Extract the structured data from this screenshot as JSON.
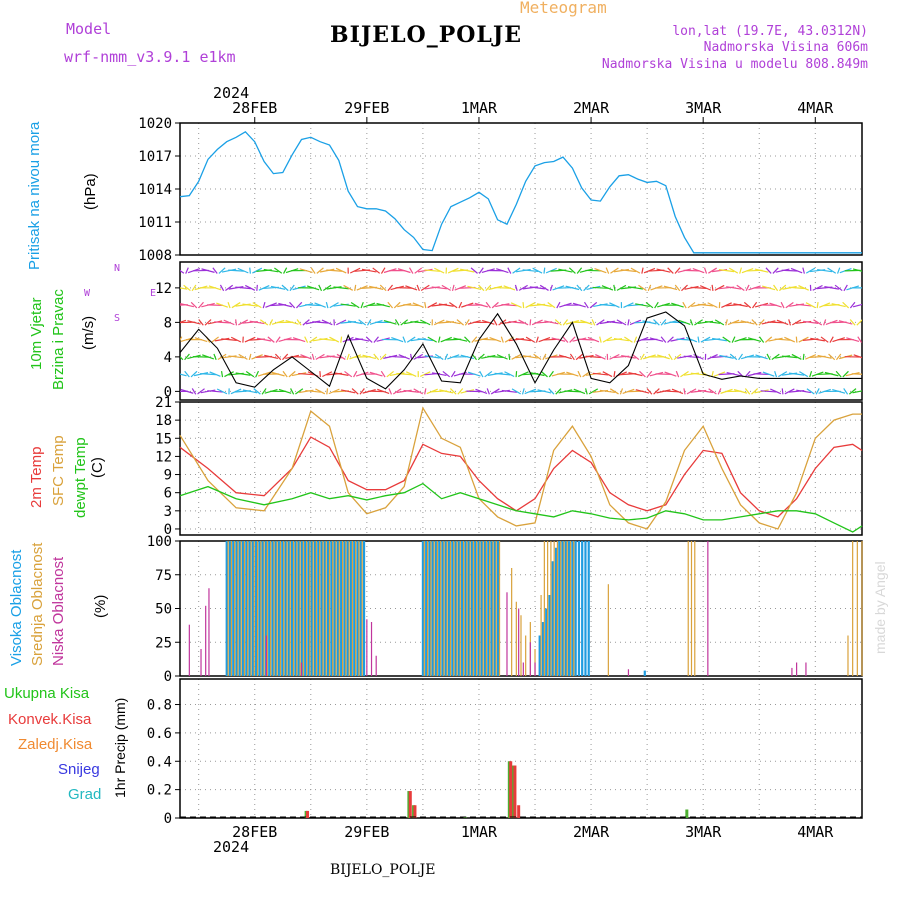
{
  "header": {
    "meteogram": "Meteogram",
    "title": "BIJELO_POLJE",
    "model_label": "Model",
    "model_name": "wrf-nmm_v3.9.1 e1km",
    "lonlat": "lon,lat (19.7E, 43.0312N)",
    "elevation": "Nadmorska Visina 606m",
    "model_elevation": "Nadmorska Visina u modelu 808.849m"
  },
  "footer": {
    "station": "BIJELO_POLJE",
    "credit": "made by Angel"
  },
  "colors": {
    "pressure": "#1aa0e6",
    "t2m": "#e83b3b",
    "tsfc": "#d9a23c",
    "dew": "#22c41a",
    "cloud_high": "#1e9be0",
    "cloud_mid": "#d9a23c",
    "cloud_low": "#c0359c",
    "precip_total": "#4caf30",
    "precip_conv": "#e83b3b",
    "precip_frz": "#f08a30",
    "snow": "#3838e0",
    "hail": "#22b8c0"
  },
  "chart_data": [
    {
      "type": "line",
      "title": "",
      "ylabel": "Pritisak na nivou mora",
      "unit": "(hPa)",
      "top_axis": {
        "year": "2024",
        "labels": [
          "28FEB",
          "29FEB",
          "1MAR",
          "2MAR",
          "3MAR",
          "4MAR"
        ]
      },
      "yticks": [
        1008,
        1011,
        1014,
        1017,
        1020
      ],
      "ylim": [
        1008,
        1020
      ],
      "xlim": [
        0,
        146
      ],
      "grid": true,
      "series": [
        {
          "name": "Pritisak",
          "x": [
            0,
            2,
            4,
            6,
            8,
            10,
            12,
            14,
            16,
            18,
            20,
            22,
            24,
            26,
            28,
            30,
            32,
            34,
            36,
            38,
            40,
            42,
            44,
            46,
            48,
            50,
            52,
            54,
            56,
            58,
            60,
            62,
            64,
            66,
            68,
            70,
            72,
            74,
            76,
            78,
            80,
            82,
            84,
            86,
            88,
            90,
            92,
            94,
            96,
            98,
            100,
            102,
            104,
            106,
            108,
            110,
            112,
            114,
            116,
            118,
            120,
            122,
            124,
            126,
            128,
            130,
            132,
            134,
            136,
            138,
            140,
            142,
            144,
            146
          ],
          "values": [
            1013.3,
            1013.4,
            1014.7,
            1016.7,
            1017.6,
            1018.3,
            1018.7,
            1019.2,
            1018.3,
            1016.5,
            1015.4,
            1015.5,
            1017.1,
            1018.5,
            1018.7,
            1018.3,
            1018.0,
            1016.6,
            1013.8,
            1012.4,
            1012.2,
            1012.2,
            1012.0,
            1011.3,
            1010.3,
            1009.6,
            1008.5,
            1008.4,
            1010.8,
            1012.4,
            1012.8,
            1013.2,
            1013.7,
            1013.1,
            1011.2,
            1010.8,
            1012.6,
            1014.7,
            1016.1,
            1016.4,
            1016.5,
            1016.9,
            1015.9,
            1014.1,
            1013.0,
            1012.9,
            1014.2,
            1015.2,
            1015.3,
            1014.9,
            1014.6,
            1014.7,
            1014.3,
            1011.5,
            1009.6,
            1008.2,
            1008.2,
            1008.2,
            1008.2,
            1008.2,
            1008.2,
            1008.2,
            1008.2,
            1008.2,
            1008.2,
            1008.2,
            1008.2,
            1008.2,
            1008.2,
            1008.2,
            1008.2,
            1008.2,
            1008.2,
            1008.2
          ]
        }
      ]
    },
    {
      "type": "line",
      "title": "",
      "ylabel": "10m Vjetar",
      "ylabel2": "Brzina i Pravac",
      "unit": "(m/s)",
      "compass": {
        "n": "N",
        "w": "W",
        "e": "E",
        "s": "S"
      },
      "yticks": [
        0,
        4,
        8,
        12
      ],
      "ylim": [
        -1,
        15
      ],
      "xlim": [
        0,
        146
      ],
      "grid": true,
      "series": [
        {
          "name": "speed",
          "x": [
            0,
            4,
            8,
            12,
            16,
            20,
            24,
            28,
            32,
            36,
            40,
            44,
            48,
            52,
            56,
            60,
            64,
            68,
            72,
            76,
            80,
            84,
            88,
            92,
            96,
            100,
            104,
            108,
            112,
            116,
            120,
            124,
            128,
            132,
            136,
            140,
            144,
            146
          ],
          "values": [
            4.5,
            7.2,
            5.0,
            1.0,
            0.5,
            2.5,
            4.0,
            2.3,
            0.6,
            6.5,
            1.5,
            0.3,
            2.5,
            5.5,
            1.2,
            1.0,
            6.0,
            9.0,
            5.5,
            1.0,
            4.8,
            8.0,
            1.5,
            1.0,
            3.0,
            8.5,
            9.2,
            7.6,
            2.0,
            1.4,
            1.8,
            1.5,
            1.5,
            1.5,
            1.5,
            1.5,
            1.5,
            1.5
          ]
        }
      ]
    },
    {
      "type": "line",
      "title": "",
      "ylabel": "2m Temp",
      "ylabel2": "SFC Temp",
      "ylabel3": "dewpt Temp",
      "unit": "(C)",
      "yticks": [
        0,
        3,
        6,
        9,
        12,
        15,
        18,
        21
      ],
      "ylim": [
        -1,
        21
      ],
      "xlim": [
        0,
        146
      ],
      "grid": true,
      "series": [
        {
          "name": "2m Temp",
          "x": [
            0,
            6,
            12,
            18,
            24,
            28,
            32,
            36,
            40,
            44,
            48,
            52,
            56,
            60,
            64,
            68,
            72,
            76,
            80,
            84,
            88,
            92,
            96,
            100,
            104,
            108,
            112,
            116,
            120,
            124,
            128,
            132,
            136,
            140,
            144,
            146
          ],
          "values": [
            13.5,
            10.0,
            6.0,
            5.5,
            10.0,
            15.2,
            13.5,
            8.0,
            6.5,
            6.5,
            8.0,
            14.0,
            12.5,
            12.0,
            8.0,
            5.0,
            3.0,
            5.0,
            10.0,
            13.0,
            11.0,
            6.0,
            4.0,
            3.0,
            4.0,
            9.0,
            13.0,
            12.5,
            6.0,
            3.0,
            2.0,
            5.0,
            10.0,
            13.5,
            14.0,
            13.0
          ]
        },
        {
          "name": "SFC Temp",
          "x": [
            0,
            6,
            12,
            18,
            24,
            28,
            32,
            36,
            40,
            44,
            48,
            52,
            56,
            60,
            64,
            68,
            72,
            76,
            80,
            84,
            88,
            92,
            96,
            100,
            104,
            108,
            112,
            116,
            120,
            124,
            128,
            132,
            136,
            140,
            144,
            146
          ],
          "values": [
            15.5,
            8.0,
            3.5,
            3.0,
            10.0,
            19.5,
            17.0,
            6.0,
            2.5,
            3.5,
            7.0,
            20.0,
            15.0,
            13.5,
            5.0,
            2.0,
            0.5,
            1.0,
            13.0,
            17.0,
            12.0,
            4.0,
            1.0,
            0.0,
            4.5,
            13.0,
            17.0,
            10.0,
            4.0,
            1.0,
            0.0,
            6.0,
            15.0,
            18.0,
            19.0,
            19.0
          ]
        },
        {
          "name": "dewpt Temp",
          "x": [
            0,
            6,
            12,
            18,
            24,
            28,
            32,
            36,
            40,
            44,
            48,
            52,
            56,
            60,
            64,
            68,
            72,
            76,
            80,
            84,
            88,
            92,
            96,
            100,
            104,
            108,
            112,
            116,
            120,
            124,
            128,
            132,
            136,
            140,
            144,
            146
          ],
          "values": [
            5.5,
            7.0,
            5.0,
            4.0,
            5.0,
            6.0,
            5.0,
            5.5,
            4.8,
            5.5,
            6.0,
            7.5,
            5.0,
            6.0,
            5.0,
            4.0,
            3.0,
            2.5,
            2.0,
            3.0,
            2.5,
            1.8,
            1.5,
            1.8,
            3.0,
            2.5,
            1.5,
            1.5,
            2.0,
            2.5,
            3.0,
            3.0,
            2.5,
            1.0,
            -0.5,
            0.5
          ]
        }
      ]
    },
    {
      "type": "bar",
      "title": "",
      "ylabel": "Visoka Oblacnost",
      "ylabel2": "Srednja Oblacnost",
      "ylabel3": "Niska Oblacnost",
      "unit": "(%)",
      "yticks": [
        0,
        25,
        50,
        75,
        100
      ],
      "ylim": [
        0,
        100
      ],
      "xlim": [
        0,
        146
      ],
      "grid": true,
      "series": [
        {
          "name": "Visoka Oblacnost",
          "hours": [
            10,
            10.7,
            11.4,
            12.1,
            12.8,
            13.5,
            14.2,
            14.9,
            15.6,
            16.3,
            17,
            17.7,
            18.4,
            19.1,
            19.8,
            20.5,
            21.2,
            21.9,
            22.6,
            23.3,
            24,
            24.7,
            25.4,
            26.1,
            26.8,
            27.5,
            28.2,
            28.9,
            29.6,
            30.3,
            31,
            31.7,
            32.4,
            33.1,
            33.8,
            34.5,
            35.2,
            35.9,
            36.6,
            37.3,
            38,
            38.7,
            39.4,
            52,
            52.7,
            53.4,
            54.1,
            54.8,
            55.5,
            56.2,
            56.9,
            57.6,
            58.3,
            59,
            59.7,
            60.4,
            61.1,
            61.8,
            62.5,
            63.2,
            63.9,
            64.6,
            65.3,
            66,
            66.7,
            67.4,
            68.1,
            77,
            77.7,
            78.4,
            79.1,
            79.8,
            80.5,
            81.2,
            81.9,
            82.6,
            83.3,
            84,
            84.7,
            85.4,
            86.1,
            86.8,
            87.5,
            99.5
          ],
          "values": [
            100,
            100,
            100,
            100,
            100,
            100,
            100,
            100,
            100,
            100,
            100,
            100,
            100,
            100,
            100,
            100,
            100,
            100,
            100,
            100,
            100,
            100,
            100,
            100,
            100,
            100,
            100,
            100,
            100,
            100,
            100,
            100,
            100,
            100,
            100,
            100,
            100,
            100,
            100,
            100,
            100,
            100,
            100,
            100,
            100,
            100,
            100,
            100,
            100,
            100,
            100,
            100,
            100,
            100,
            100,
            100,
            100,
            100,
            100,
            100,
            100,
            100,
            100,
            100,
            100,
            100,
            100,
            30,
            40,
            50,
            60,
            85,
            95,
            100,
            100,
            100,
            100,
            100,
            100,
            100,
            100,
            100,
            100,
            4
          ]
        },
        {
          "name": "Srednja Oblacnost",
          "hours": [
            10.3,
            11,
            11.7,
            12.4,
            13.1,
            13.8,
            14.5,
            15.2,
            15.9,
            16.6,
            17.3,
            18,
            18.7,
            19.4,
            20.1,
            20.8,
            21.5,
            22.2,
            22.9,
            23.6,
            24.3,
            25,
            25.7,
            26.4,
            27.1,
            27.8,
            28.5,
            29.2,
            29.9,
            30.6,
            31.3,
            32,
            32.7,
            33.4,
            34.1,
            34.8,
            35.5,
            36.2,
            36.9,
            37.6,
            38.3,
            39,
            52.3,
            53,
            53.7,
            54.4,
            55.1,
            55.8,
            56.5,
            57.2,
            57.9,
            58.6,
            59.3,
            60,
            60.7,
            61.4,
            62.1,
            62.8,
            63.5,
            64.2,
            64.9,
            65.6,
            66.3,
            67,
            67.7,
            68.4,
            71,
            72,
            73,
            74,
            75,
            76,
            77.3,
            78,
            78.7,
            79.4,
            80.1,
            80.8,
            81.5,
            82.2,
            82.9,
            83.6,
            84.3,
            91.7,
            108.8,
            109.5,
            110.2,
            143,
            144,
            145,
            146
          ],
          "values": [
            100,
            100,
            100,
            100,
            100,
            100,
            100,
            100,
            100,
            100,
            100,
            100,
            100,
            100,
            100,
            100,
            100,
            100,
            100,
            100,
            100,
            100,
            100,
            100,
            100,
            100,
            100,
            100,
            100,
            100,
            100,
            100,
            100,
            100,
            100,
            100,
            100,
            100,
            100,
            100,
            100,
            100,
            100,
            100,
            100,
            100,
            100,
            100,
            100,
            100,
            100,
            100,
            100,
            100,
            100,
            100,
            100,
            100,
            100,
            100,
            100,
            100,
            100,
            100,
            100,
            100,
            80,
            55,
            45,
            30,
            40,
            20,
            60,
            100,
            100,
            100,
            100,
            100,
            100,
            100,
            100,
            100,
            100,
            68,
            100,
            100,
            100,
            30,
            100,
            100,
            100
          ]
        },
        {
          "name": "Niska Oblacnost",
          "hours": [
            2,
            4.5,
            5.5,
            6.2,
            18.5,
            26,
            40,
            41,
            42,
            70,
            72.5,
            73.5,
            75,
            76,
            96,
            113,
            131,
            132,
            134
          ],
          "values": [
            38,
            20,
            52,
            65,
            30,
            10,
            42,
            40,
            15,
            62,
            50,
            10,
            25,
            10,
            5,
            100,
            6,
            10,
            10
          ]
        }
      ]
    },
    {
      "type": "bar",
      "title": "",
      "ylabel": "1hr Precip (mm)",
      "legend": [
        "Ukupna Kisa",
        "Konvek.Kisa",
        "Zaledj.Kisa",
        "Snijeg",
        "Grad"
      ],
      "yticks": [
        0,
        0.2,
        0.4,
        0.6,
        0.8
      ],
      "ylim": [
        0,
        0.98
      ],
      "xlim": [
        0,
        146
      ],
      "grid": true,
      "bottom_axis": {
        "year": "2024",
        "labels": [
          "28FEB",
          "29FEB",
          "1MAR",
          "2MAR",
          "3MAR",
          "4MAR"
        ]
      },
      "series": [
        {
          "name": "Ukupna Kisa",
          "hours": [
            27,
            49,
            50,
            61,
            70.5,
            71.4,
            108.5
          ],
          "values": [
            0.05,
            0.19,
            0.09,
            0.01,
            0.4,
            0.37,
            0.06
          ]
        },
        {
          "name": "Konvek.Kisa",
          "hours": [
            27.3,
            49.3,
            50.3,
            70.8,
            71.7,
            72.5
          ],
          "values": [
            0.05,
            0.19,
            0.09,
            0.4,
            0.37,
            0.09
          ]
        }
      ]
    }
  ]
}
